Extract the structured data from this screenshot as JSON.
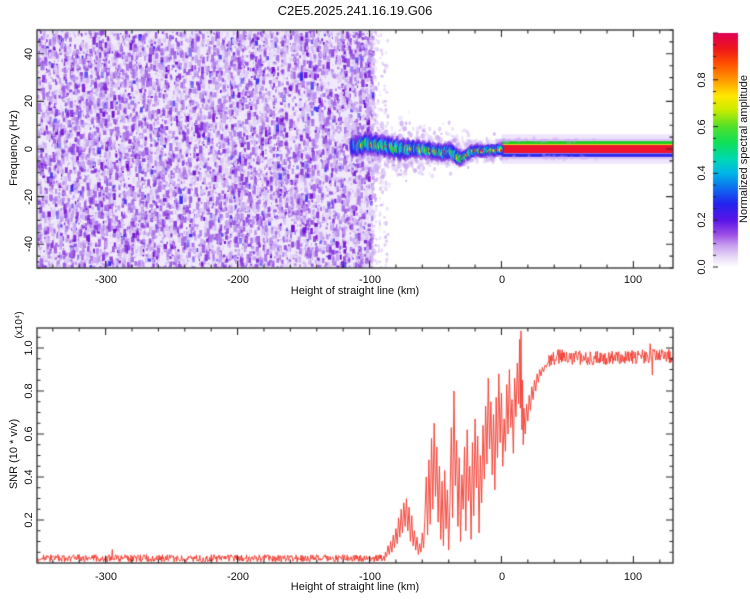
{
  "title": "C2E5.2025.241.16.19.G06",
  "chart_data": [
    {
      "type": "heatmap",
      "panel": "spectrogram",
      "xlabel": "Height of straight line (km)",
      "ylabel": "Frequency (Hz)",
      "xlim": [
        -352,
        130
      ],
      "ylim": [
        -50,
        50
      ],
      "x_major_ticks": [
        -300,
        -200,
        -100,
        0,
        100
      ],
      "x_tick_labels": [
        "-300",
        "-200",
        "-100",
        "0",
        "100"
      ],
      "x_minor_step": 20,
      "y_major_ticks": [
        -40,
        -20,
        0,
        20,
        40
      ],
      "y_tick_labels": [
        "40",
        "20",
        "0",
        "-20",
        "-40"
      ],
      "y_minor_step": 5,
      "colorbar": {
        "label": "Normalized spectral amplitude",
        "ticks": [
          0,
          0.2,
          0.4,
          0.6,
          0.8
        ],
        "tick_labels": [
          "0.0",
          "0.2",
          "0.4",
          "0.6",
          "0.8"
        ],
        "minor_step": 0.05,
        "lim": [
          0,
          1
        ],
        "stops": [
          [
            0.0,
            "#ffffff"
          ],
          [
            0.04,
            "#eadcf8"
          ],
          [
            0.09,
            "#c9a2ef"
          ],
          [
            0.14,
            "#9b4ce5"
          ],
          [
            0.2,
            "#5a14e8"
          ],
          [
            0.27,
            "#2323ee"
          ],
          [
            0.33,
            "#0f66f0"
          ],
          [
            0.4,
            "#00b4e8"
          ],
          [
            0.46,
            "#00d8b4"
          ],
          [
            0.53,
            "#0ee05a"
          ],
          [
            0.6,
            "#52e02a"
          ],
          [
            0.67,
            "#c8ec00"
          ],
          [
            0.73,
            "#ffe800"
          ],
          [
            0.8,
            "#ff9900"
          ],
          [
            0.87,
            "#ff5000"
          ],
          [
            0.93,
            "#f01818"
          ],
          [
            1.0,
            "#e00055"
          ]
        ]
      },
      "noise_field": {
        "x_range_km": [
          -352,
          -98
        ],
        "palette": [
          "#ddc9f6",
          "#c5a2f0",
          "#a86fe8",
          "#8c3ede",
          "#7312d0"
        ],
        "blue_accent": "#3d2cf0",
        "base": "#efe9fb"
      },
      "scatter_region": {
        "x_range_km": [
          -98,
          2
        ],
        "center_hz": 0,
        "sigma_hz": 9
      },
      "signal_trace": [
        [
          -113,
          0.6,
          0.2
        ],
        [
          -111,
          1.6,
          0.3
        ],
        [
          -109,
          0.9,
          0.45
        ],
        [
          -107,
          2.3,
          0.55
        ],
        [
          -105,
          1.1,
          0.6
        ],
        [
          -103,
          2.9,
          0.72
        ],
        [
          -101,
          1.6,
          0.62
        ],
        [
          -99,
          2.6,
          0.9
        ],
        [
          -97,
          1.3,
          0.78
        ],
        [
          -95,
          2.1,
          1.0
        ],
        [
          -93,
          0.9,
          0.85
        ],
        [
          -91,
          1.9,
          0.95
        ],
        [
          -89,
          0.6,
          0.8
        ],
        [
          -87,
          1.6,
          1.0
        ],
        [
          -85,
          0.3,
          0.88
        ],
        [
          -83,
          1.3,
          0.75
        ],
        [
          -81,
          -0.3,
          0.95
        ],
        [
          -79,
          0.9,
          0.85
        ],
        [
          -77,
          -0.5,
          1.0
        ],
        [
          -75,
          0.6,
          0.9
        ],
        [
          -73,
          -0.8,
          0.8
        ],
        [
          -71,
          0.4,
          0.95
        ],
        [
          -69,
          -0.5,
          0.85
        ],
        [
          -67,
          0.6,
          1.0
        ],
        [
          -65,
          -0.2,
          0.9
        ],
        [
          -63,
          0.9,
          0.8
        ],
        [
          -61,
          -0.6,
          0.9
        ],
        [
          -59,
          0.4,
          1.0
        ],
        [
          -57,
          -0.9,
          0.85
        ],
        [
          -55,
          0.1,
          0.95
        ],
        [
          -53,
          -1.3,
          0.8
        ],
        [
          -51,
          -0.4,
          0.9
        ],
        [
          -49,
          -1.6,
          1.0
        ],
        [
          -47,
          -0.6,
          0.85
        ],
        [
          -45,
          -1.9,
          0.9
        ],
        [
          -43,
          -0.9,
          0.95
        ],
        [
          -41,
          -1.3,
          0.85
        ],
        [
          -39,
          -0.6,
          0.9
        ],
        [
          -37,
          -1.6,
          0.8
        ],
        [
          -35,
          -2.6,
          0.9
        ],
        [
          -33,
          -3.3,
          0.95
        ],
        [
          -31,
          -3.9,
          0.85
        ],
        [
          -29,
          -3.6,
          0.9
        ],
        [
          -27,
          -2.9,
          1.0
        ],
        [
          -25,
          -2.1,
          0.9
        ],
        [
          -23,
          -1.3,
          0.95
        ],
        [
          -21,
          -0.9,
          0.85
        ],
        [
          -19,
          -0.4,
          0.9
        ],
        [
          -17,
          -0.9,
          1.0
        ],
        [
          -15,
          -0.6,
          0.9
        ],
        [
          -13,
          -1.1,
          0.95
        ],
        [
          -11,
          -0.6,
          1.0
        ],
        [
          -9,
          -0.9,
          0.92
        ],
        [
          -7,
          -0.4,
          0.96
        ],
        [
          -5,
          -0.7,
          1.0
        ],
        [
          -3,
          -0.3,
          0.96
        ],
        [
          -1,
          -0.3,
          1.0
        ],
        [
          0,
          -0.1,
          1.0
        ]
      ],
      "stripe": {
        "x_range_km": [
          0,
          130
        ],
        "halo_hz": 6.2,
        "bands": [
          {
            "hz": [
              1.9,
              3.3
            ],
            "color": "#1ecc1e"
          },
          {
            "hz": [
              1.55,
              2.0
            ],
            "color": "#e8f000"
          },
          {
            "hz": [
              -1.7,
              1.7
            ],
            "color": "#ee1430"
          },
          {
            "hz": [
              -3.3,
              -1.9
            ],
            "color": "#2a2aee"
          }
        ]
      }
    },
    {
      "type": "line",
      "panel": "snr",
      "xlabel": "Height of straight line (km)",
      "ylabel": "SNR (10 * v/v)",
      "y_scale_label": "(x10⁴)",
      "xlim": [
        -352,
        130
      ],
      "ylim": [
        0,
        1.093
      ],
      "x_major_ticks": [
        -300,
        -200,
        -100,
        0,
        100
      ],
      "x_tick_labels": [
        "-300",
        "-200",
        "-100",
        "0",
        "100"
      ],
      "x_minor_step": 20,
      "y_major_ticks": [
        0.2,
        0.4,
        0.6,
        0.8,
        1.0
      ],
      "y_tick_labels": [
        "1.0",
        "0.8",
        "0.6",
        "0.4",
        "0.2"
      ],
      "y_minor_step": 0.05,
      "line_color": "#f23a2e",
      "baseline": {
        "x_range": [
          -352,
          -88
        ],
        "base": 0.005,
        "amp": 0.034
      },
      "points": [
        [
          -88,
          0.05
        ],
        [
          -87,
          0.03
        ],
        [
          -86,
          0.08
        ],
        [
          -85,
          0.04
        ],
        [
          -84,
          0.1
        ],
        [
          -83,
          0.05
        ],
        [
          -82,
          0.13
        ],
        [
          -81,
          0.07
        ],
        [
          -80,
          0.16
        ],
        [
          -79,
          0.09
        ],
        [
          -78,
          0.21
        ],
        [
          -77,
          0.12
        ],
        [
          -76,
          0.25
        ],
        [
          -75,
          0.14
        ],
        [
          -74,
          0.28
        ],
        [
          -73,
          0.17
        ],
        [
          -72,
          0.3
        ],
        [
          -71,
          0.15
        ],
        [
          -70,
          0.26
        ],
        [
          -69,
          0.1
        ],
        [
          -68,
          0.22
        ],
        [
          -67,
          0.08
        ],
        [
          -66,
          0.15
        ],
        [
          -65,
          0.06
        ],
        [
          -64,
          0.12
        ],
        [
          -63,
          0.04
        ],
        [
          -62,
          0.09
        ],
        [
          -61,
          0.05
        ],
        [
          -60,
          0.14
        ],
        [
          -59,
          0.07
        ],
        [
          -58,
          0.22
        ],
        [
          -57,
          0.4
        ],
        [
          -56,
          0.13
        ],
        [
          -55,
          0.48
        ],
        [
          -54,
          0.18
        ],
        [
          -53,
          0.58
        ],
        [
          -52,
          0.25
        ],
        [
          -51,
          0.65
        ],
        [
          -50,
          0.31
        ],
        [
          -49,
          0.54
        ],
        [
          -48,
          0.19
        ],
        [
          -47,
          0.45
        ],
        [
          -46,
          0.11
        ],
        [
          -45,
          0.38
        ],
        [
          -44,
          0.08
        ],
        [
          -43,
          0.43
        ],
        [
          -42,
          0.16
        ],
        [
          -41,
          0.34
        ],
        [
          -40,
          0.06
        ],
        [
          -39,
          0.29
        ],
        [
          -38,
          0.63
        ],
        [
          -37,
          0.21
        ],
        [
          -36,
          0.8
        ],
        [
          -35,
          0.36
        ],
        [
          -34,
          0.57
        ],
        [
          -33,
          0.17
        ],
        [
          -32,
          0.49
        ],
        [
          -31,
          0.1
        ],
        [
          -30,
          0.41
        ],
        [
          -29,
          0.25
        ],
        [
          -28,
          0.54
        ],
        [
          -27,
          0.15
        ],
        [
          -26,
          0.62
        ],
        [
          -25,
          0.29
        ],
        [
          -24,
          0.45
        ],
        [
          -23,
          0.11
        ],
        [
          -22,
          0.56
        ],
        [
          -21,
          0.22
        ],
        [
          -20,
          0.67
        ],
        [
          -19,
          0.35
        ],
        [
          -18,
          0.59
        ],
        [
          -17,
          0.14
        ],
        [
          -16,
          0.5
        ],
        [
          -15,
          0.28
        ],
        [
          -14,
          0.64
        ],
        [
          -13,
          0.39
        ],
        [
          -12,
          0.73
        ],
        [
          -11,
          0.46
        ],
        [
          -10,
          0.86
        ],
        [
          -9,
          0.53
        ],
        [
          -8,
          0.75
        ],
        [
          -7,
          0.41
        ],
        [
          -6,
          0.69
        ],
        [
          -5,
          0.34
        ],
        [
          -4,
          0.77
        ],
        [
          -3,
          0.49
        ],
        [
          -2,
          0.88
        ],
        [
          -1,
          0.56
        ],
        [
          0,
          0.79
        ],
        [
          1,
          0.45
        ],
        [
          2,
          0.67
        ],
        [
          3,
          0.52
        ],
        [
          4,
          0.83
        ],
        [
          5,
          0.6
        ],
        [
          6,
          0.9
        ],
        [
          7,
          0.63
        ],
        [
          8,
          0.76
        ],
        [
          9,
          0.51
        ],
        [
          10,
          0.86
        ],
        [
          11,
          0.68
        ],
        [
          12,
          0.93
        ],
        [
          13,
          0.74
        ],
        [
          13.8,
          1.04
        ],
        [
          14.3,
          0.72
        ],
        [
          14.8,
          1.08
        ],
        [
          15.5,
          0.62
        ],
        [
          16,
          0.85
        ],
        [
          16.5,
          0.55
        ],
        [
          17,
          0.72
        ],
        [
          18,
          0.6
        ],
        [
          19,
          0.74
        ],
        [
          20,
          0.66
        ],
        [
          21,
          0.78
        ],
        [
          22,
          0.71
        ],
        [
          23,
          0.82
        ],
        [
          24,
          0.76
        ],
        [
          25,
          0.85
        ],
        [
          26,
          0.8
        ],
        [
          27,
          0.88
        ],
        [
          28,
          0.84
        ],
        [
          29,
          0.9
        ],
        [
          30,
          0.87
        ],
        [
          31,
          0.91
        ],
        [
          32,
          0.89
        ],
        [
          33,
          0.92
        ],
        [
          34,
          0.91
        ],
        [
          35,
          0.93
        ],
        [
          36,
          0.94
        ]
      ],
      "plateau": {
        "x_range": [
          36,
          130
        ],
        "base": 0.958,
        "amp": 0.068,
        "events": [
          [
            112.5,
            1.02
          ],
          [
            114,
            0.875
          ]
        ]
      }
    }
  ]
}
